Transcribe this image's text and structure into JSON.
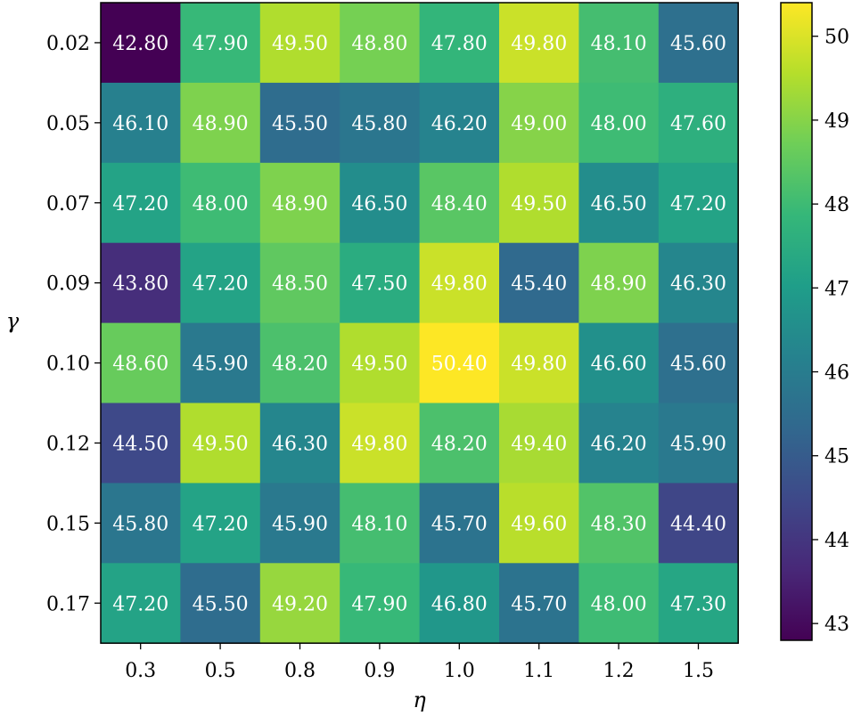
{
  "chart_data": {
    "type": "heatmap",
    "title": "",
    "xlabel": "η",
    "ylabel": "γ",
    "x_categories": [
      "0.3",
      "0.5",
      "0.8",
      "0.9",
      "1.0",
      "1.1",
      "1.2",
      "1.5"
    ],
    "y_categories": [
      "0.02",
      "0.05",
      "0.07",
      "0.09",
      "0.10",
      "0.12",
      "0.15",
      "0.17"
    ],
    "values": [
      [
        42.8,
        47.9,
        49.5,
        48.8,
        47.8,
        49.8,
        48.1,
        45.6
      ],
      [
        46.1,
        48.9,
        45.5,
        45.8,
        46.2,
        49.0,
        48.0,
        47.6
      ],
      [
        47.2,
        48.0,
        48.9,
        46.5,
        48.4,
        49.5,
        46.5,
        47.2
      ],
      [
        43.8,
        47.2,
        48.5,
        47.5,
        49.8,
        45.4,
        48.9,
        46.3
      ],
      [
        48.6,
        45.9,
        48.2,
        49.5,
        50.4,
        49.8,
        46.6,
        45.6
      ],
      [
        44.5,
        49.5,
        46.3,
        49.8,
        48.2,
        49.4,
        46.2,
        45.9
      ],
      [
        45.8,
        47.2,
        45.9,
        48.1,
        45.7,
        49.6,
        48.3,
        44.4
      ],
      [
        47.2,
        45.5,
        49.2,
        47.9,
        46.8,
        45.7,
        48.0,
        47.3
      ]
    ],
    "value_labels": [
      [
        "42.80",
        "47.90",
        "49.50",
        "48.80",
        "47.80",
        "49.80",
        "48.10",
        "45.60"
      ],
      [
        "46.10",
        "48.90",
        "45.50",
        "45.80",
        "46.20",
        "49.00",
        "48.00",
        "47.60"
      ],
      [
        "47.20",
        "48.00",
        "48.90",
        "46.50",
        "48.40",
        "49.50",
        "46.50",
        "47.20"
      ],
      [
        "43.80",
        "47.20",
        "48.50",
        "47.50",
        "49.80",
        "45.40",
        "48.90",
        "46.30"
      ],
      [
        "48.60",
        "45.90",
        "48.20",
        "49.50",
        "50.40",
        "49.80",
        "46.60",
        "45.60"
      ],
      [
        "44.50",
        "49.50",
        "46.30",
        "49.80",
        "48.20",
        "49.40",
        "46.20",
        "45.90"
      ],
      [
        "45.80",
        "47.20",
        "45.90",
        "48.10",
        "45.70",
        "49.60",
        "48.30",
        "44.40"
      ],
      [
        "47.20",
        "45.50",
        "49.20",
        "47.90",
        "46.80",
        "45.70",
        "48.00",
        "47.30"
      ]
    ],
    "colormap": "viridis",
    "colorbar": {
      "min": 42.8,
      "max": 50.4,
      "ticks": [
        43,
        44,
        45,
        46,
        47,
        48,
        49,
        50
      ],
      "tick_labels": [
        "43",
        "44",
        "45",
        "46",
        "47",
        "48",
        "49",
        "50"
      ],
      "placement": "right"
    },
    "colors": {
      "viridis_stops": [
        "#440154",
        "#482878",
        "#3e4989",
        "#31688e",
        "#26828e",
        "#1f9e89",
        "#35b779",
        "#6ece58",
        "#b5de2b",
        "#fde725"
      ],
      "cell_text": "#ffffff",
      "frame": "#000000"
    }
  }
}
